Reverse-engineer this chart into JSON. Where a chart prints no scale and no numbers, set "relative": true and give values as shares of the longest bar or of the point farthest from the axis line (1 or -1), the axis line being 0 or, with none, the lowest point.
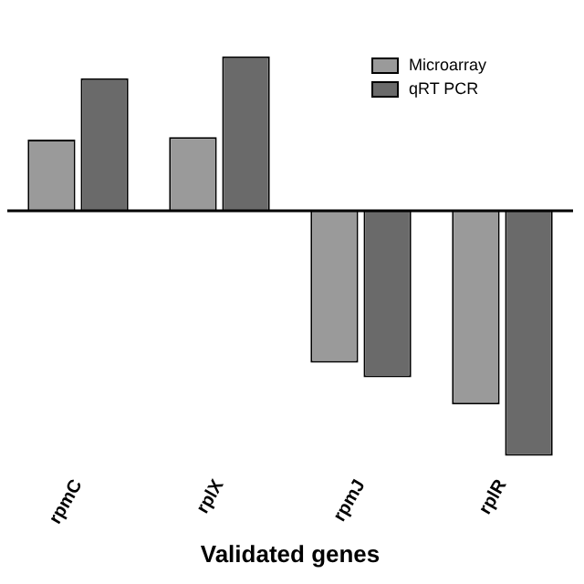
{
  "chart_data": {
    "type": "bar",
    "xlabel": "Validated genes",
    "categories": [
      "rpmC",
      "rplX",
      "rpmJ",
      "rplR"
    ],
    "relative": true,
    "legend": "top right",
    "grid": false,
    "series": [
      {
        "name": "Microarray",
        "color": "#9a9a9a",
        "values": [
          0.29,
          0.3,
          -0.62,
          -0.79
        ]
      },
      {
        "name": "qRT PCR",
        "color": "#6a6a6a",
        "values": [
          0.54,
          0.63,
          -0.68,
          -1
        ]
      }
    ]
  }
}
